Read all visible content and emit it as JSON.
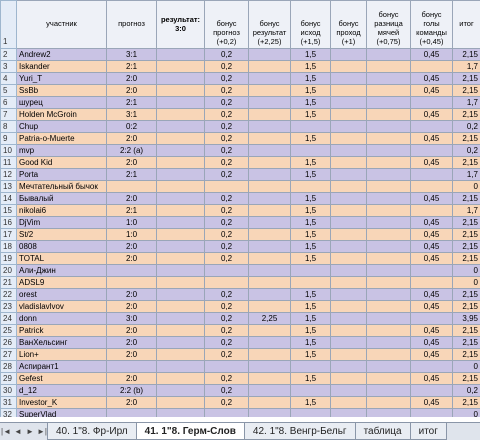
{
  "header": {
    "row_num": "1",
    "name": "участник",
    "prognoz": "прогноз",
    "result_label": "результат:",
    "result_value": "3:0",
    "b1": "бонус прогноз (+0,2)",
    "b2": "бонус результат (+2,25)",
    "b3": "бонус исход (+1,5)",
    "b4": "бонус проход (+1)",
    "b5": "бонус разница мячей (+0,75)",
    "b6": "бонус голы команды (+0,45)",
    "total": "итог"
  },
  "rows": [
    {
      "n": "2",
      "name": "Andrew2",
      "p": "3:1",
      "b1": "0,2",
      "b2": "",
      "b3": "1,5",
      "b4": "",
      "b5": "",
      "b6": "0,45",
      "t": "2,15"
    },
    {
      "n": "3",
      "name": "Iskander",
      "p": "2:1",
      "b1": "0,2",
      "b2": "",
      "b3": "1,5",
      "b4": "",
      "b5": "",
      "b6": "",
      "t": "1,7"
    },
    {
      "n": "4",
      "name": "Yuri_T",
      "p": "2:0",
      "b1": "0,2",
      "b2": "",
      "b3": "1,5",
      "b4": "",
      "b5": "",
      "b6": "0,45",
      "t": "2,15"
    },
    {
      "n": "5",
      "name": "SsBb",
      "p": "2:0",
      "b1": "0,2",
      "b2": "",
      "b3": "1,5",
      "b4": "",
      "b5": "",
      "b6": "0,45",
      "t": "2,15"
    },
    {
      "n": "6",
      "name": "шурец",
      "p": "2:1",
      "b1": "0,2",
      "b2": "",
      "b3": "1,5",
      "b4": "",
      "b5": "",
      "b6": "",
      "t": "1,7"
    },
    {
      "n": "7",
      "name": "Holden McGroin",
      "p": "3:1",
      "b1": "0,2",
      "b2": "",
      "b3": "1,5",
      "b4": "",
      "b5": "",
      "b6": "0,45",
      "t": "2,15"
    },
    {
      "n": "8",
      "name": "Chup",
      "p": "0:2",
      "b1": "0,2",
      "b2": "",
      "b3": "",
      "b4": "",
      "b5": "",
      "b6": "",
      "t": "0,2"
    },
    {
      "n": "9",
      "name": "Patria-o-Muerte",
      "p": "2:0",
      "b1": "0,2",
      "b2": "",
      "b3": "1,5",
      "b4": "",
      "b5": "",
      "b6": "0,45",
      "t": "2,15"
    },
    {
      "n": "10",
      "name": "mvp",
      "p": "2:2 (a)",
      "b1": "0,2",
      "b2": "",
      "b3": "",
      "b4": "",
      "b5": "",
      "b6": "",
      "t": "0,2"
    },
    {
      "n": "11",
      "name": "Good Kid",
      "p": "2:0",
      "b1": "0,2",
      "b2": "",
      "b3": "1,5",
      "b4": "",
      "b5": "",
      "b6": "0,45",
      "t": "2,15"
    },
    {
      "n": "12",
      "name": "Porta",
      "p": "2:1",
      "b1": "0,2",
      "b2": "",
      "b3": "1,5",
      "b4": "",
      "b5": "",
      "b6": "",
      "t": "1,7"
    },
    {
      "n": "13",
      "name": "Мечтательный бычок",
      "p": "",
      "b1": "",
      "b2": "",
      "b3": "",
      "b4": "",
      "b5": "",
      "b6": "",
      "t": "0"
    },
    {
      "n": "14",
      "name": "Бывалый",
      "p": "2:0",
      "b1": "0,2",
      "b2": "",
      "b3": "1,5",
      "b4": "",
      "b5": "",
      "b6": "0,45",
      "t": "2,15"
    },
    {
      "n": "15",
      "name": "nikolai6",
      "p": "2:1",
      "b1": "0,2",
      "b2": "",
      "b3": "1,5",
      "b4": "",
      "b5": "",
      "b6": "",
      "t": "1,7"
    },
    {
      "n": "16",
      "name": "DjVim",
      "p": "1:0",
      "b1": "0,2",
      "b2": "",
      "b3": "1,5",
      "b4": "",
      "b5": "",
      "b6": "0,45",
      "t": "2,15"
    },
    {
      "n": "17",
      "name": "St/2",
      "p": "1:0",
      "b1": "0,2",
      "b2": "",
      "b3": "1,5",
      "b4": "",
      "b5": "",
      "b6": "0,45",
      "t": "2,15"
    },
    {
      "n": "18",
      "name": "0808",
      "p": "2:0",
      "b1": "0,2",
      "b2": "",
      "b3": "1,5",
      "b4": "",
      "b5": "",
      "b6": "0,45",
      "t": "2,15"
    },
    {
      "n": "19",
      "name": "TOTAL",
      "p": "2:0",
      "b1": "0,2",
      "b2": "",
      "b3": "1,5",
      "b4": "",
      "b5": "",
      "b6": "0,45",
      "t": "2,15"
    },
    {
      "n": "20",
      "name": "Али-Джин",
      "p": "",
      "b1": "",
      "b2": "",
      "b3": "",
      "b4": "",
      "b5": "",
      "b6": "",
      "t": "0"
    },
    {
      "n": "21",
      "name": "ADSL9",
      "p": "",
      "b1": "",
      "b2": "",
      "b3": "",
      "b4": "",
      "b5": "",
      "b6": "",
      "t": "0"
    },
    {
      "n": "22",
      "name": "orest",
      "p": "2:0",
      "b1": "0,2",
      "b2": "",
      "b3": "1,5",
      "b4": "",
      "b5": "",
      "b6": "0,45",
      "t": "2,15"
    },
    {
      "n": "23",
      "name": "vladislavlvov",
      "p": "2:0",
      "b1": "0,2",
      "b2": "",
      "b3": "1,5",
      "b4": "",
      "b5": "",
      "b6": "0,45",
      "t": "2,15"
    },
    {
      "n": "24",
      "name": "donn",
      "p": "3:0",
      "b1": "0,2",
      "b2": "2,25",
      "b3": "1,5",
      "b4": "",
      "b5": "",
      "b6": "",
      "t": "3,95"
    },
    {
      "n": "25",
      "name": "Patrick",
      "p": "2:0",
      "b1": "0,2",
      "b2": "",
      "b3": "1,5",
      "b4": "",
      "b5": "",
      "b6": "0,45",
      "t": "2,15"
    },
    {
      "n": "26",
      "name": "ВанХельсинг",
      "p": "2:0",
      "b1": "0,2",
      "b2": "",
      "b3": "1,5",
      "b4": "",
      "b5": "",
      "b6": "0,45",
      "t": "2,15"
    },
    {
      "n": "27",
      "name": "Lion+",
      "p": "2:0",
      "b1": "0,2",
      "b2": "",
      "b3": "1,5",
      "b4": "",
      "b5": "",
      "b6": "0,45",
      "t": "2,15"
    },
    {
      "n": "28",
      "name": "Аспирант1",
      "p": "",
      "b1": "",
      "b2": "",
      "b3": "",
      "b4": "",
      "b5": "",
      "b6": "",
      "t": "0"
    },
    {
      "n": "29",
      "name": "Gefest",
      "p": "2:0",
      "b1": "0,2",
      "b2": "",
      "b3": "1,5",
      "b4": "",
      "b5": "",
      "b6": "0,45",
      "t": "2,15"
    },
    {
      "n": "30",
      "name": "d_12",
      "p": "2:2 (b)",
      "b1": "0,2",
      "b2": "",
      "b3": "",
      "b4": "",
      "b5": "",
      "b6": "",
      "t": "0,2"
    },
    {
      "n": "31",
      "name": "Investor_K",
      "p": "2:0",
      "b1": "0,2",
      "b2": "",
      "b3": "1,5",
      "b4": "",
      "b5": "",
      "b6": "0,45",
      "t": "2,15"
    },
    {
      "n": "32",
      "name": "SuperVlad",
      "p": "",
      "b1": "",
      "b2": "",
      "b3": "",
      "b4": "",
      "b5": "",
      "b6": "",
      "t": "0"
    }
  ],
  "tabs": [
    {
      "label": "40. 1\"8. Фр-Ирл",
      "active": false
    },
    {
      "label": "41. 1\"8. Герм-Слов",
      "active": true
    },
    {
      "label": "42. 1\"8. Венгр-Бельг",
      "active": false
    },
    {
      "label": "таблица",
      "active": false
    },
    {
      "label": "итог",
      "active": false
    }
  ],
  "nav": [
    "|◄",
    "◄",
    "►",
    "►|"
  ],
  "colors": {
    "row_even": "#c9c3e4",
    "row_odd": "#f8d6b8",
    "header_bg": "#eef1f7"
  }
}
